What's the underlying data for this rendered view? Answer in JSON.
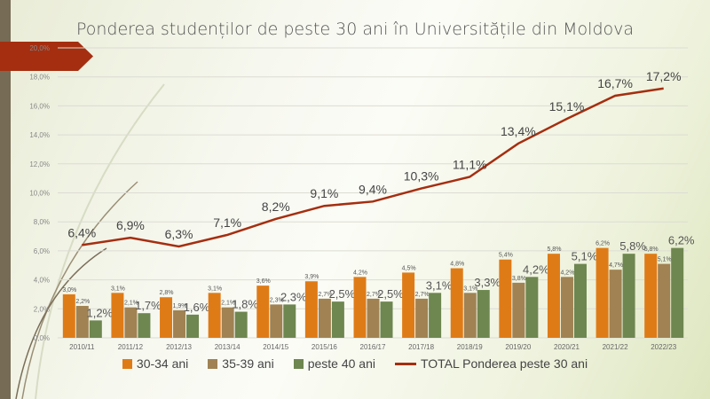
{
  "chart_data": {
    "type": "bar",
    "title": "Ponderea studenților de peste 30 ani în Universitățile din Moldova",
    "categories": [
      "2010/11",
      "2011/12",
      "2012/13",
      "2013/14",
      "2014/15",
      "2015/16",
      "2016/17",
      "2017/18",
      "2018/19",
      "2019/20",
      "2020/21",
      "2021/22",
      "2022/23"
    ],
    "series": [
      {
        "name": "30-34 ani",
        "kind": "bar",
        "color": "#df7b17",
        "values": [
          3.0,
          3.1,
          2.8,
          3.1,
          3.6,
          3.9,
          4.2,
          4.5,
          4.8,
          5.4,
          5.8,
          6.2,
          5.8
        ]
      },
      {
        "name": "35-39 ani",
        "kind": "bar",
        "color": "#a08253",
        "values": [
          2.2,
          2.1,
          1.9,
          2.1,
          2.3,
          2.7,
          2.7,
          2.7,
          3.1,
          3.8,
          4.2,
          4.7,
          5.1
        ]
      },
      {
        "name": "peste 40 ani",
        "kind": "bar",
        "color": "#6e8650",
        "values": [
          1.2,
          1.7,
          1.6,
          1.8,
          2.3,
          2.5,
          2.5,
          3.1,
          3.3,
          4.2,
          5.1,
          5.8,
          6.2
        ]
      },
      {
        "name": "TOTAL Ponderea peste 30 ani",
        "kind": "line",
        "color": "#a52e10",
        "values": [
          6.4,
          6.9,
          6.3,
          7.1,
          8.2,
          9.1,
          9.4,
          10.3,
          11.1,
          13.4,
          15.1,
          16.7,
          17.2
        ]
      }
    ],
    "yticks": [
      "0,0%",
      "2,0%",
      "4,0%",
      "6,0%",
      "8,0%",
      "10,0%",
      "12,0%",
      "14,0%",
      "16,0%",
      "18,0%",
      "20,0%"
    ],
    "ylim": [
      0,
      20
    ],
    "grid": true,
    "legend": "bottom"
  }
}
